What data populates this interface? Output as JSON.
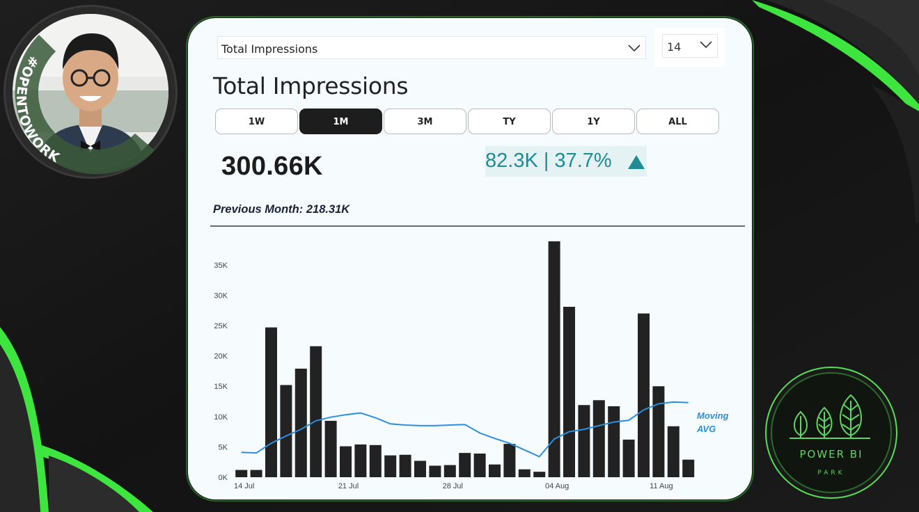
{
  "profile": {
    "badge_text": "#OPENTOWORK"
  },
  "card": {
    "metric_selector": {
      "value": "Total Impressions"
    },
    "number_selector": {
      "value": "14"
    },
    "title": "Total Impressions",
    "tabs": [
      {
        "label": "1W",
        "active": false
      },
      {
        "label": "1M",
        "active": true
      },
      {
        "label": "3M",
        "active": false
      },
      {
        "label": "TY",
        "active": false
      },
      {
        "label": "1Y",
        "active": false
      },
      {
        "label": "ALL",
        "active": false
      }
    ],
    "total_value": "300.66K",
    "change_text": "82.3K | 37.7%",
    "previous_text": "Previous Month: 218.31K"
  },
  "colors": {
    "bar": "#222222",
    "moving_avg": "#2b8fdd",
    "change_text": "#1f8c93",
    "change_bg": "#e4f2f4",
    "active_tab": "#1d1d1d",
    "accent_green": "#3ee53e"
  },
  "chart_data": {
    "type": "bar",
    "x": [
      "2024-07-14",
      "2024-07-15",
      "2024-07-16",
      "2024-07-17",
      "2024-07-18",
      "2024-07-19",
      "2024-07-20",
      "2024-07-21",
      "2024-07-22",
      "2024-07-23",
      "2024-07-24",
      "2024-07-25",
      "2024-07-26",
      "2024-07-27",
      "2024-07-28",
      "2024-07-29",
      "2024-07-30",
      "2024-07-31",
      "2024-08-01",
      "2024-08-02",
      "2024-08-03",
      "2024-08-04",
      "2024-08-05",
      "2024-08-06",
      "2024-08-07",
      "2024-08-08",
      "2024-08-09",
      "2024-08-10",
      "2024-08-11",
      "2024-08-12",
      "2024-08-13"
    ],
    "x_tick_labels": [
      "14 Jul",
      "21 Jul",
      "28 Jul",
      "04 Aug",
      "11 Aug"
    ],
    "y_tick_labels": [
      "0K",
      "5K",
      "10K",
      "15K",
      "20K",
      "25K",
      "30K",
      "35K"
    ],
    "ylim": [
      0,
      39000
    ],
    "series": [
      {
        "name": "",
        "type": "bar",
        "values": [
          1200,
          1200,
          24700,
          15200,
          17900,
          21600,
          9300,
          5100,
          5400,
          5300,
          3600,
          3700,
          2700,
          1900,
          2000,
          4000,
          3900,
          2100,
          5500,
          1300,
          900,
          38900,
          28100,
          11900,
          12700,
          11700,
          6200,
          27000,
          15000,
          8400,
          2900
        ]
      },
      {
        "name": "Moving AVG",
        "type": "line",
        "values": [
          4100,
          4000,
          5600,
          6800,
          7900,
          9300,
          9900,
          10300,
          10600,
          9800,
          8800,
          8600,
          8500,
          8500,
          8600,
          8700,
          7300,
          6400,
          5600,
          4500,
          3400,
          6300,
          7500,
          7900,
          8500,
          9100,
          9400,
          11100,
          12100,
          12400,
          12300
        ]
      }
    ],
    "line_label": "Moving AVG"
  },
  "brand_badge": {
    "line1": "POWER BI",
    "line2": "PARK"
  }
}
